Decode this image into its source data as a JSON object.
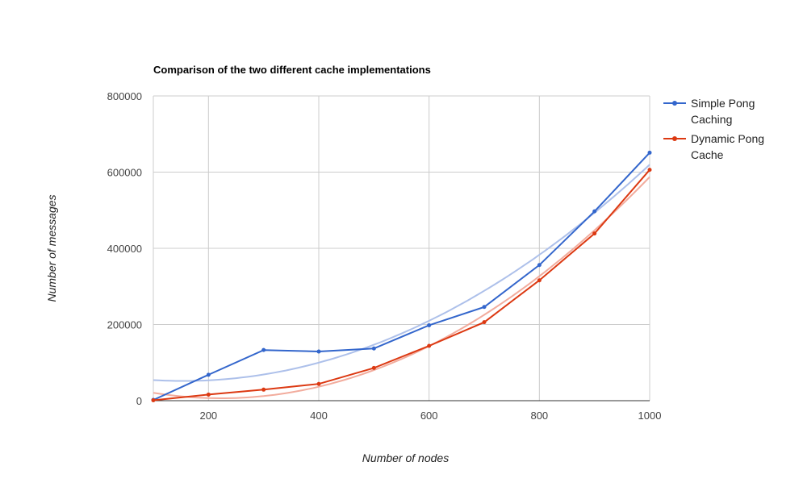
{
  "chart_data": {
    "type": "line",
    "title": "Comparison of the two different cache implementations",
    "xlabel": "Number of nodes",
    "ylabel": "Number of messages",
    "xlim": [
      100,
      1000
    ],
    "ylim": [
      0,
      800000
    ],
    "x_ticks": [
      200,
      400,
      600,
      800,
      1000
    ],
    "y_ticks": [
      0,
      200000,
      400000,
      600000,
      800000
    ],
    "x_tick_labels": [
      "200",
      "400",
      "600",
      "800",
      "1000"
    ],
    "y_tick_labels": [
      "0",
      "200000",
      "400000",
      "600000",
      "800000"
    ],
    "grid": true,
    "legend_position": "right",
    "x": [
      100,
      200,
      300,
      400,
      500,
      600,
      700,
      800,
      900,
      1000
    ],
    "series": [
      {
        "name": "Simple Pong Caching",
        "legend_lines": [
          "Simple Pong",
          "Caching"
        ],
        "color": "#3366cc",
        "trend_color": "#a9bde9",
        "values": [
          2000,
          68000,
          133000,
          129000,
          137000,
          198000,
          246000,
          356000,
          497000,
          651000
        ],
        "trendline": "polynomial"
      },
      {
        "name": "Dynamic Pong Cache",
        "legend_lines": [
          "Dynamic Pong",
          "Cache"
        ],
        "color": "#dc3912",
        "trend_color": "#f1a898",
        "values": [
          1000,
          16000,
          29000,
          44000,
          86000,
          144000,
          206000,
          316000,
          439000,
          606000
        ],
        "trendline": "polynomial"
      }
    ]
  }
}
